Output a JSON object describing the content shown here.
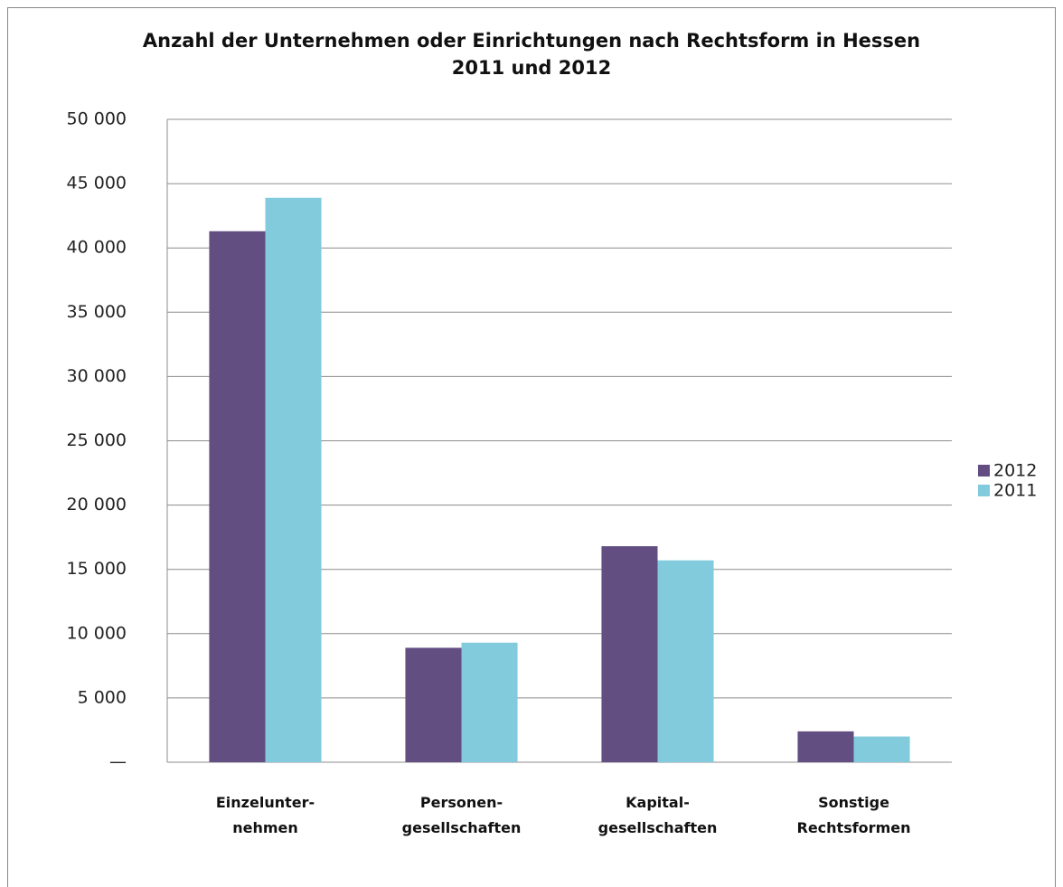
{
  "chart_data": {
    "type": "bar",
    "title": "Anzahl der Unternehmen oder Einrichtungen nach Rechtsform in Hessen\n2011 und 2012",
    "categories": [
      "Einzelunter-\nnehmen",
      "Personen-\ngesellschaften",
      "Kapital-\ngesellschaften",
      "Sonstige\nRechtsformen"
    ],
    "series": [
      {
        "name": "2012",
        "color": "#634e82",
        "values": [
          41300,
          8900,
          16800,
          2400
        ]
      },
      {
        "name": "2011",
        "color": "#82cbdc",
        "values": [
          43900,
          9300,
          15700,
          2000
        ]
      }
    ],
    "ylim": [
      0,
      50000
    ],
    "yticks": [
      {
        "value": 0,
        "label": "—"
      },
      {
        "value": 5000,
        "label": "5 000"
      },
      {
        "value": 10000,
        "label": "10 000"
      },
      {
        "value": 15000,
        "label": "15 000"
      },
      {
        "value": 20000,
        "label": "20 000"
      },
      {
        "value": 25000,
        "label": "25 000"
      },
      {
        "value": 30000,
        "label": "30 000"
      },
      {
        "value": 35000,
        "label": "35 000"
      },
      {
        "value": 40000,
        "label": "40 000"
      },
      {
        "value": 45000,
        "label": "45 000"
      },
      {
        "value": 50000,
        "label": "50 000"
      }
    ],
    "grid": true,
    "legend": "right"
  }
}
